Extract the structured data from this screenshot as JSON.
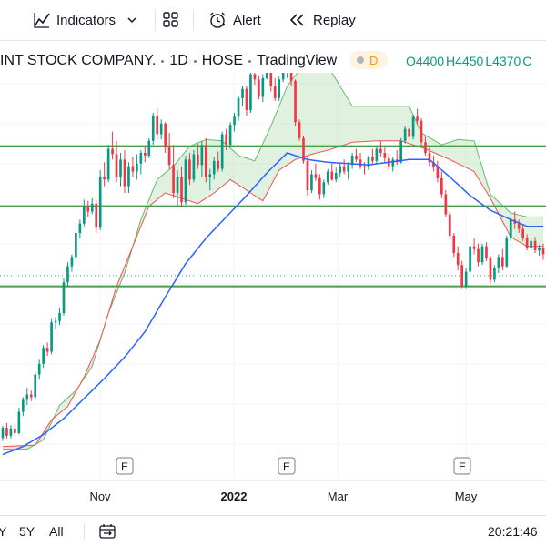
{
  "toolbar": {
    "indicators_label": "Indicators",
    "alert_label": "Alert",
    "replay_label": "Replay"
  },
  "legend": {
    "symbol_name": "INT STOCK COMPANY.",
    "interval": "1D",
    "exchange": "HOSE",
    "source": "TradingView",
    "badge_letter": "D",
    "open": "O4400",
    "high": "H4450",
    "low": "L4370",
    "close_partial": "C"
  },
  "bottombar": {
    "range_partial": "Y",
    "range_5y": "5Y",
    "range_all": "All",
    "clock": "20:21:46"
  },
  "colors": {
    "up": "#089981",
    "down": "#f23645",
    "ma": "#2962ff",
    "support": "#43a047",
    "cloud_green": "#a5d6a7",
    "cloud_red": "#ef9a9a"
  },
  "chart_data": {
    "type": "candlestick",
    "x_ticks": [
      "Nov",
      "2022",
      "Mar",
      "May"
    ],
    "event_markers": [
      "E",
      "E",
      "E"
    ],
    "ylim": [
      2500,
      5500
    ],
    "support_lines": [
      4950,
      4500,
      3900
    ],
    "dotted_level": 3980,
    "candles": [
      [
        2765,
        2855,
        2740,
        2840
      ],
      [
        2840,
        2875,
        2760,
        2780
      ],
      [
        2780,
        2860,
        2760,
        2835
      ],
      [
        2835,
        2875,
        2780,
        2800
      ],
      [
        2800,
        2990,
        2790,
        2960
      ],
      [
        2960,
        3070,
        2930,
        3050
      ],
      [
        3050,
        3140,
        3010,
        3090
      ],
      [
        3090,
        3120,
        3040,
        3070
      ],
      [
        3070,
        3260,
        3050,
        3240
      ],
      [
        3240,
        3350,
        3200,
        3320
      ],
      [
        3320,
        3460,
        3290,
        3440
      ],
      [
        3440,
        3480,
        3380,
        3410
      ],
      [
        3410,
        3660,
        3390,
        3630
      ],
      [
        3630,
        3670,
        3580,
        3640
      ],
      [
        3640,
        3740,
        3610,
        3700
      ],
      [
        3700,
        3960,
        3680,
        3930
      ],
      [
        3930,
        4080,
        3900,
        4050
      ],
      [
        4050,
        4140,
        4010,
        4120
      ],
      [
        4120,
        4320,
        4100,
        4300
      ],
      [
        4300,
        4400,
        4260,
        4370
      ],
      [
        4370,
        4550,
        4350,
        4500
      ],
      [
        4500,
        4540,
        4420,
        4460
      ],
      [
        4460,
        4560,
        4440,
        4520
      ],
      [
        4520,
        4550,
        4300,
        4340
      ],
      [
        4340,
        4770,
        4320,
        4720
      ],
      [
        4720,
        4830,
        4650,
        4700
      ],
      [
        4700,
        4960,
        4680,
        4930
      ],
      [
        4930,
        5060,
        4850,
        4890
      ],
      [
        4890,
        4990,
        4680,
        4720
      ],
      [
        4720,
        4900,
        4650,
        4850
      ],
      [
        4850,
        4920,
        4600,
        4650
      ],
      [
        4650,
        4830,
        4600,
        4800
      ],
      [
        4800,
        4870,
        4720,
        4760
      ],
      [
        4760,
        4890,
        4700,
        4820
      ],
      [
        4820,
        4920,
        4740,
        4900
      ],
      [
        4900,
        4950,
        4830,
        4880
      ],
      [
        4880,
        5010,
        4860,
        4990
      ],
      [
        4990,
        5200,
        4960,
        5180
      ],
      [
        5180,
        5230,
        5000,
        5040
      ],
      [
        5040,
        5150,
        5000,
        5120
      ],
      [
        5120,
        5130,
        4900,
        4940
      ],
      [
        4940,
        5050,
        4780,
        4810
      ],
      [
        4810,
        4960,
        4560,
        4600
      ],
      [
        4600,
        4770,
        4500,
        4720
      ],
      [
        4720,
        4800,
        4490,
        4530
      ],
      [
        4530,
        4880,
        4510,
        4850
      ],
      [
        4850,
        4900,
        4660,
        4700
      ],
      [
        4700,
        4920,
        4680,
        4890
      ],
      [
        4890,
        4970,
        4780,
        4810
      ],
      [
        4810,
        4990,
        4720,
        4960
      ],
      [
        4960,
        5010,
        4680,
        4720
      ],
      [
        4720,
        4780,
        4620,
        4740
      ],
      [
        4740,
        4870,
        4700,
        4840
      ],
      [
        4840,
        4910,
        4760,
        4780
      ],
      [
        4780,
        5060,
        4760,
        5040
      ],
      [
        5040,
        5080,
        4920,
        4960
      ],
      [
        4960,
        5130,
        4940,
        5110
      ],
      [
        5110,
        5200,
        5060,
        5170
      ],
      [
        5170,
        5330,
        5140,
        5310
      ],
      [
        5310,
        5400,
        5250,
        5380
      ],
      [
        5380,
        5400,
        5180,
        5220
      ],
      [
        5220,
        5510,
        5200,
        5490
      ],
      [
        5490,
        5550,
        5410,
        5450
      ],
      [
        5450,
        5480,
        5300,
        5320
      ],
      [
        5320,
        5490,
        5280,
        5460
      ],
      [
        5460,
        5540,
        5450,
        5520
      ],
      [
        5520,
        5580,
        5360,
        5400
      ],
      [
        5400,
        5460,
        5290,
        5310
      ],
      [
        5310,
        5470,
        5290,
        5450
      ],
      [
        5450,
        5530,
        5430,
        5500
      ],
      [
        5500,
        5600,
        5460,
        5520
      ],
      [
        5520,
        5580,
        5400,
        5440
      ],
      [
        5440,
        5450,
        5100,
        5130
      ],
      [
        5130,
        5150,
        4990,
        5010
      ],
      [
        5010,
        5030,
        4820,
        4840
      ],
      [
        4840,
        4880,
        4580,
        4620
      ],
      [
        4620,
        4770,
        4600,
        4740
      ],
      [
        4740,
        4820,
        4690,
        4710
      ],
      [
        4710,
        4740,
        4550,
        4590
      ],
      [
        4590,
        4700,
        4560,
        4680
      ],
      [
        4680,
        4780,
        4660,
        4760
      ],
      [
        4760,
        4820,
        4690,
        4700
      ],
      [
        4700,
        4790,
        4680,
        4750
      ],
      [
        4750,
        4820,
        4720,
        4800
      ],
      [
        4800,
        4850,
        4740,
        4760
      ],
      [
        4760,
        4830,
        4700,
        4810
      ],
      [
        4810,
        4900,
        4780,
        4880
      ],
      [
        4880,
        4930,
        4830,
        4850
      ],
      [
        4850,
        4900,
        4780,
        4800
      ],
      [
        4800,
        4830,
        4740,
        4790
      ],
      [
        4790,
        4880,
        4770,
        4870
      ],
      [
        4870,
        4930,
        4820,
        4840
      ],
      [
        4840,
        4950,
        4820,
        4930
      ],
      [
        4930,
        4990,
        4870,
        4900
      ],
      [
        4900,
        4940,
        4830,
        4860
      ],
      [
        4860,
        4900,
        4770,
        4800
      ],
      [
        4800,
        4870,
        4760,
        4850
      ],
      [
        4850,
        4920,
        4810,
        4830
      ],
      [
        4830,
        5010,
        4820,
        4990
      ],
      [
        4990,
        5100,
        4970,
        5080
      ],
      [
        5080,
        5110,
        5000,
        5020
      ],
      [
        5020,
        5190,
        5000,
        5170
      ],
      [
        5170,
        5230,
        5110,
        5140
      ],
      [
        5140,
        5160,
        4950,
        4980
      ],
      [
        4980,
        5020,
        4880,
        4900
      ],
      [
        4900,
        4940,
        4800,
        4830
      ],
      [
        4830,
        4880,
        4760,
        4790
      ],
      [
        4790,
        4840,
        4680,
        4710
      ],
      [
        4710,
        4760,
        4560,
        4590
      ],
      [
        4590,
        4620,
        4420,
        4440
      ],
      [
        4440,
        4460,
        4250,
        4280
      ],
      [
        4280,
        4300,
        4120,
        4150
      ],
      [
        4150,
        4200,
        4020,
        4060
      ],
      [
        4060,
        4090,
        3880,
        3900
      ],
      [
        3900,
        4040,
        3880,
        4010
      ],
      [
        4010,
        4220,
        3990,
        4200
      ],
      [
        4200,
        4260,
        4140,
        4180
      ],
      [
        4180,
        4220,
        4050,
        4080
      ],
      [
        4080,
        4220,
        4060,
        4200
      ],
      [
        4200,
        4230,
        4090,
        4110
      ],
      [
        4110,
        4130,
        3920,
        3950
      ],
      [
        3950,
        4060,
        3930,
        4040
      ],
      [
        4040,
        4140,
        4000,
        4120
      ],
      [
        4120,
        4180,
        4020,
        4050
      ],
      [
        4050,
        4280,
        4040,
        4260
      ],
      [
        4260,
        4420,
        4240,
        4400
      ],
      [
        4400,
        4460,
        4330,
        4370
      ],
      [
        4370,
        4400,
        4300,
        4330
      ],
      [
        4330,
        4360,
        4240,
        4260
      ],
      [
        4260,
        4290,
        4170,
        4190
      ],
      [
        4190,
        4260,
        4170,
        4240
      ],
      [
        4240,
        4270,
        4150,
        4170
      ],
      [
        4170,
        4210,
        4130,
        4190
      ],
      [
        4190,
        4220,
        4100,
        4140
      ]
    ],
    "ma": [
      [
        0,
        2640
      ],
      [
        5,
        2700
      ],
      [
        10,
        2790
      ],
      [
        15,
        2910
      ],
      [
        20,
        3060
      ],
      [
        25,
        3210
      ],
      [
        30,
        3370
      ],
      [
        35,
        3560
      ],
      [
        40,
        3820
      ],
      [
        45,
        4070
      ],
      [
        50,
        4260
      ],
      [
        55,
        4420
      ],
      [
        60,
        4580
      ],
      [
        65,
        4750
      ],
      [
        70,
        4900
      ],
      [
        75,
        4850
      ],
      [
        80,
        4830
      ],
      [
        85,
        4820
      ],
      [
        90,
        4810
      ],
      [
        95,
        4830
      ],
      [
        100,
        4850
      ],
      [
        105,
        4850
      ],
      [
        110,
        4720
      ],
      [
        115,
        4580
      ],
      [
        120,
        4470
      ],
      [
        125,
        4400
      ],
      [
        129,
        4350
      ]
    ],
    "cloud_upper": [
      [
        0,
        2680
      ],
      [
        6,
        2680
      ],
      [
        10,
        2750
      ],
      [
        14,
        3010
      ],
      [
        18,
        3120
      ],
      [
        22,
        3300
      ],
      [
        26,
        3700
      ],
      [
        30,
        4000
      ],
      [
        34,
        4400
      ],
      [
        38,
        4700
      ],
      [
        42,
        4800
      ],
      [
        46,
        4950
      ],
      [
        50,
        5000
      ],
      [
        54,
        4990
      ],
      [
        58,
        4880
      ],
      [
        62,
        4840
      ],
      [
        66,
        5100
      ],
      [
        70,
        5400
      ],
      [
        74,
        5560
      ],
      [
        78,
        5590
      ],
      [
        81,
        5500
      ],
      [
        86,
        5250
      ],
      [
        90,
        5250
      ],
      [
        95,
        5250
      ],
      [
        100,
        5250
      ],
      [
        103,
        5050
      ],
      [
        108,
        4960
      ],
      [
        112,
        5000
      ],
      [
        116,
        4990
      ],
      [
        120,
        4590
      ],
      [
        125,
        4450
      ],
      [
        129,
        4420
      ]
    ],
    "cloud_lower": [
      [
        0,
        2700
      ],
      [
        8,
        2710
      ],
      [
        12,
        2900
      ],
      [
        16,
        3000
      ],
      [
        20,
        3220
      ],
      [
        24,
        3500
      ],
      [
        28,
        3900
      ],
      [
        32,
        4200
      ],
      [
        36,
        4500
      ],
      [
        40,
        4600
      ],
      [
        44,
        4560
      ],
      [
        48,
        4520
      ],
      [
        52,
        4600
      ],
      [
        56,
        4700
      ],
      [
        60,
        4620
      ],
      [
        64,
        4540
      ],
      [
        68,
        4770
      ],
      [
        72,
        4850
      ],
      [
        76,
        4890
      ],
      [
        80,
        4920
      ],
      [
        86,
        4980
      ],
      [
        92,
        4990
      ],
      [
        98,
        4990
      ],
      [
        104,
        4930
      ],
      [
        110,
        4850
      ],
      [
        116,
        4760
      ],
      [
        120,
        4560
      ],
      [
        125,
        4270
      ],
      [
        129,
        4200
      ]
    ]
  }
}
